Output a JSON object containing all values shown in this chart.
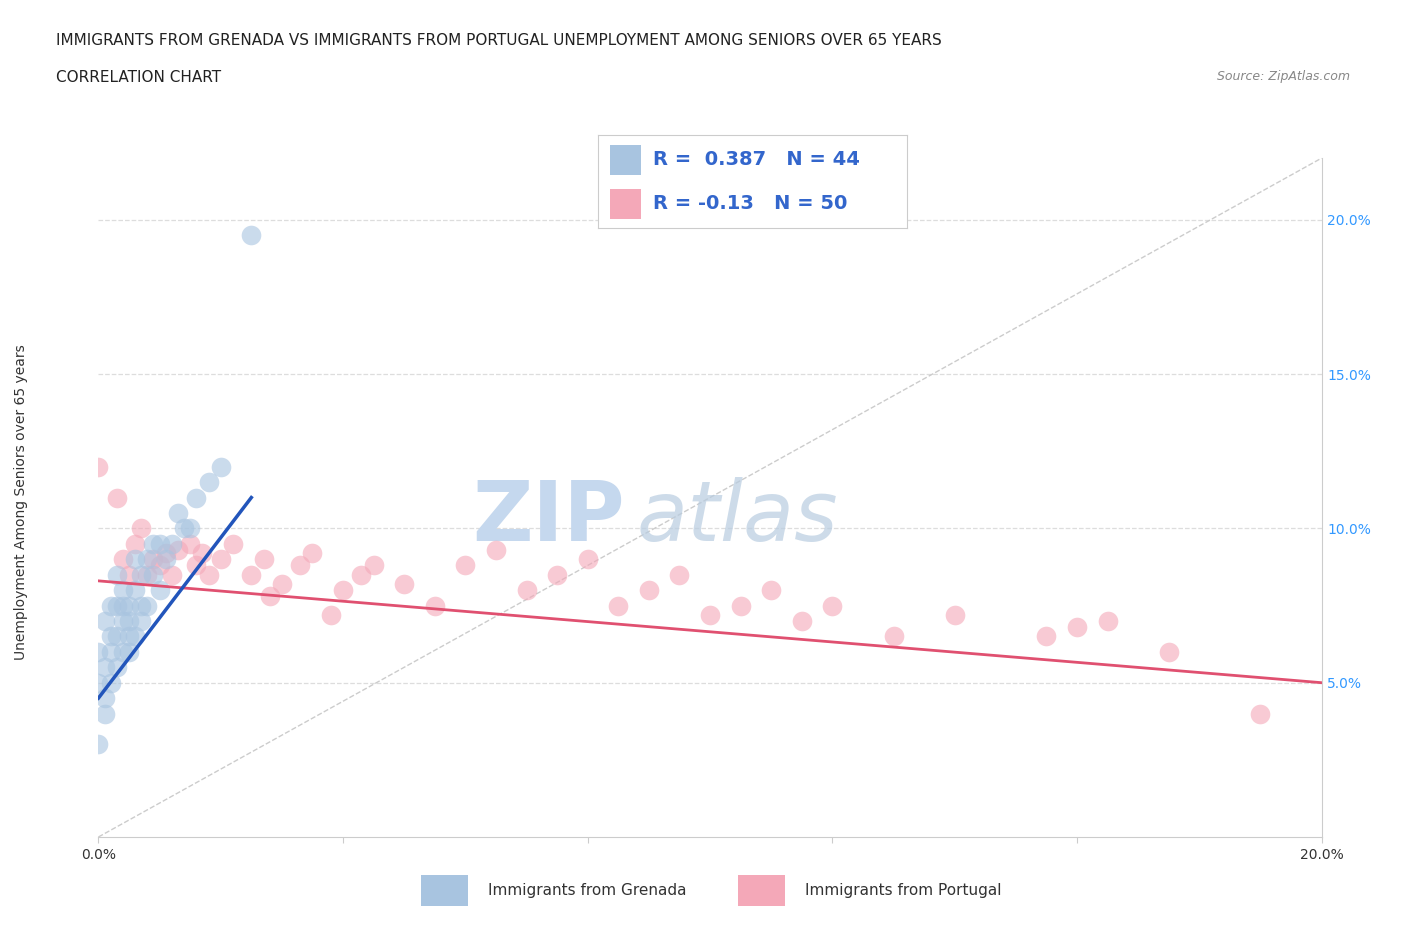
{
  "title_line1": "IMMIGRANTS FROM GRENADA VS IMMIGRANTS FROM PORTUGAL UNEMPLOYMENT AMONG SENIORS OVER 65 YEARS",
  "title_line2": "CORRELATION CHART",
  "source_text": "Source: ZipAtlas.com",
  "ylabel": "Unemployment Among Seniors over 65 years",
  "xlim": [
    0.0,
    0.2
  ],
  "ylim": [
    0.0,
    0.22
  ],
  "y_ticks_right": [
    0.05,
    0.1,
    0.15,
    0.2
  ],
  "y_tick_labels_right": [
    "5.0%",
    "10.0%",
    "15.0%",
    "20.0%"
  ],
  "grenada_color": "#a8c4e0",
  "portugal_color": "#f4a8b8",
  "grenada_line_color": "#2255bb",
  "portugal_line_color": "#e05070",
  "trend_line_color": "#bbbbbb",
  "watermark_zip_color": "#c5d8ee",
  "watermark_atlas_color": "#b8cce0",
  "R_grenada": 0.387,
  "N_grenada": 44,
  "R_portugal": -0.13,
  "N_portugal": 50,
  "legend_label_grenada": "Immigrants from Grenada",
  "legend_label_portugal": "Immigrants from Portugal",
  "grenada_scatter_x": [
    0.0,
    0.0,
    0.0,
    0.001,
    0.001,
    0.001,
    0.001,
    0.002,
    0.002,
    0.002,
    0.002,
    0.003,
    0.003,
    0.003,
    0.003,
    0.004,
    0.004,
    0.004,
    0.004,
    0.005,
    0.005,
    0.005,
    0.005,
    0.006,
    0.006,
    0.006,
    0.007,
    0.007,
    0.007,
    0.008,
    0.008,
    0.009,
    0.009,
    0.01,
    0.01,
    0.011,
    0.012,
    0.013,
    0.014,
    0.015,
    0.016,
    0.018,
    0.02,
    0.025
  ],
  "grenada_scatter_y": [
    0.05,
    0.06,
    0.03,
    0.055,
    0.045,
    0.07,
    0.04,
    0.06,
    0.05,
    0.065,
    0.075,
    0.055,
    0.065,
    0.075,
    0.085,
    0.06,
    0.07,
    0.075,
    0.08,
    0.065,
    0.075,
    0.06,
    0.07,
    0.065,
    0.08,
    0.09,
    0.07,
    0.075,
    0.085,
    0.075,
    0.09,
    0.085,
    0.095,
    0.08,
    0.095,
    0.09,
    0.095,
    0.105,
    0.1,
    0.1,
    0.11,
    0.115,
    0.12,
    0.195
  ],
  "portugal_scatter_x": [
    0.0,
    0.003,
    0.004,
    0.005,
    0.006,
    0.007,
    0.008,
    0.009,
    0.01,
    0.011,
    0.012,
    0.013,
    0.015,
    0.016,
    0.017,
    0.018,
    0.02,
    0.022,
    0.025,
    0.027,
    0.028,
    0.03,
    0.033,
    0.035,
    0.038,
    0.04,
    0.043,
    0.045,
    0.05,
    0.055,
    0.06,
    0.065,
    0.07,
    0.075,
    0.08,
    0.085,
    0.09,
    0.095,
    0.1,
    0.105,
    0.11,
    0.115,
    0.12,
    0.13,
    0.14,
    0.155,
    0.16,
    0.165,
    0.175,
    0.19
  ],
  "portugal_scatter_y": [
    0.12,
    0.11,
    0.09,
    0.085,
    0.095,
    0.1,
    0.085,
    0.09,
    0.088,
    0.092,
    0.085,
    0.093,
    0.095,
    0.088,
    0.092,
    0.085,
    0.09,
    0.095,
    0.085,
    0.09,
    0.078,
    0.082,
    0.088,
    0.092,
    0.072,
    0.08,
    0.085,
    0.088,
    0.082,
    0.075,
    0.088,
    0.093,
    0.08,
    0.085,
    0.09,
    0.075,
    0.08,
    0.085,
    0.072,
    0.075,
    0.08,
    0.07,
    0.075,
    0.065,
    0.072,
    0.065,
    0.068,
    0.07,
    0.06,
    0.04
  ],
  "background_color": "#ffffff",
  "grid_color": "#dddddd",
  "title_fontsize": 11,
  "axis_label_fontsize": 10,
  "grenada_line_x0": 0.0,
  "grenada_line_x1": 0.025,
  "grenada_line_y0": 0.045,
  "grenada_line_y1": 0.11,
  "portugal_line_x0": 0.0,
  "portugal_line_x1": 0.2,
  "portugal_line_y0": 0.083,
  "portugal_line_y1": 0.05
}
